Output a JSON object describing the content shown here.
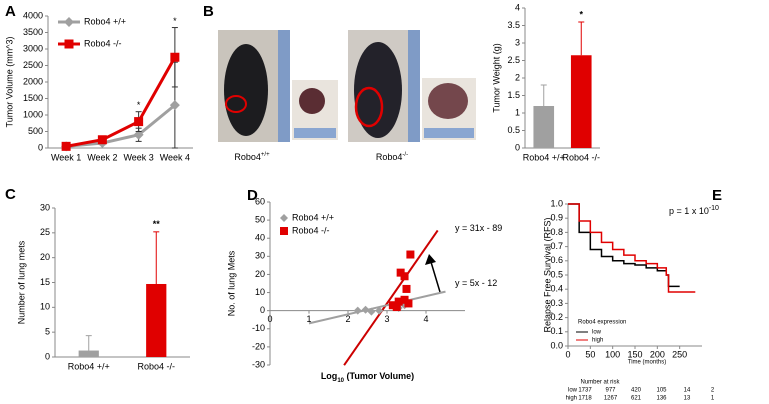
{
  "photos": {
    "panel": "B",
    "labels": [
      {
        "text": "Robo4",
        "sup": "+/+"
      },
      {
        "text": "Robo4",
        "sup": "-/-"
      }
    ]
  },
  "chart_data": [
    {
      "type": "line",
      "panel": "A",
      "y_label": "Tumor Volume (mm^3)",
      "categories": [
        "Week 1",
        "Week 2",
        "Week 3",
        "Week 4"
      ],
      "series": [
        {
          "name": "Robo4 +/+",
          "color": "#a0a0a0",
          "values": [
            50,
            150,
            400,
            1300
          ],
          "errors": [
            20,
            50,
            200,
            1300
          ]
        },
        {
          "name": "Robo4 -/-",
          "color": "#e00000",
          "values": [
            50,
            250,
            800,
            2750
          ],
          "errors": [
            20,
            80,
            300,
            900
          ]
        }
      ],
      "significance": [
        null,
        null,
        "*",
        "*"
      ],
      "ylim": [
        0,
        4000
      ],
      "yticks": [
        0,
        500,
        1000,
        1500,
        2000,
        2500,
        3000,
        3500,
        4000
      ],
      "legend": "upper left"
    },
    {
      "type": "bar",
      "y_label": "Tumor Weight (g)",
      "categories": [
        "Robo4 +/+",
        "Robo4 -/-"
      ],
      "values": [
        1.2,
        2.65
      ],
      "errors": [
        0.6,
        0.95
      ],
      "colors": [
        "#a0a0a0",
        "#e00000"
      ],
      "significance": [
        null,
        "*"
      ],
      "ylim": [
        0,
        4
      ],
      "yticks": [
        0,
        0.5,
        1,
        1.5,
        2,
        2.5,
        3,
        3.5,
        4
      ]
    },
    {
      "type": "bar",
      "panel": "C",
      "y_label": "Number of lung mets",
      "categories": [
        "Robo4 +/+",
        "Robo4 -/-"
      ],
      "values": [
        1.3,
        14.7
      ],
      "errors": [
        3,
        10.5
      ],
      "colors": [
        "#a0a0a0",
        "#e00000"
      ],
      "significance": [
        null,
        "**"
      ],
      "ylim": [
        0,
        30
      ],
      "yticks": [
        0,
        5,
        10,
        15,
        20,
        25,
        30
      ]
    },
    {
      "type": "scatter",
      "panel": "D",
      "y_label": "No. of lung Mets",
      "x_label": {
        "text": "Log",
        "sub": "10",
        "rest": " (Tumor Volume)"
      },
      "series": [
        {
          "name": "Robo4 +/+",
          "color": "#a0a0a0",
          "x": [
            2.25,
            2.45,
            2.6,
            2.8,
            3.3,
            3.45
          ],
          "values": [
            0,
            0.5,
            -0.5,
            0,
            1.5,
            3
          ]
        },
        {
          "name": "Robo4 -/-",
          "color": "#e00000",
          "x": [
            3.15,
            3.25,
            3.3,
            3.35,
            3.45,
            3.45,
            3.5,
            3.55,
            3.6
          ],
          "values": [
            3,
            2,
            5,
            21,
            19,
            6,
            12,
            4,
            31
          ]
        }
      ],
      "trendlines": [
        {
          "label": "y = 31x - 89",
          "slope": 31,
          "intercept": -89,
          "x": [
            1.9,
            4.3
          ],
          "color": "#cc0000"
        },
        {
          "label": "y = 5x - 12",
          "slope": 5,
          "intercept": -12,
          "x": [
            1,
            4.5
          ],
          "color": "#a0a0a0"
        }
      ],
      "xlim": [
        0,
        5
      ],
      "ylim": [
        -30,
        60
      ],
      "xticks": [
        0,
        1,
        2,
        3,
        4
      ],
      "yticks": [
        -30,
        -20,
        -10,
        0,
        10,
        20,
        30,
        40,
        50,
        60
      ],
      "legend": "upper left"
    },
    {
      "type": "step",
      "panel": "E",
      "title": {
        "text": "p = 1 x 10",
        "sup": "-10"
      },
      "y_label": "Relapse Free Survival (RFS)",
      "x_label": "Time (months)",
      "legend_title": "Robo4 expression",
      "series": [
        {
          "name": "low",
          "color": "#000000",
          "x": [
            0,
            25,
            50,
            75,
            100,
            125,
            150,
            175,
            200,
            220,
            225,
            250
          ],
          "values": [
            1,
            0.8,
            0.68,
            0.63,
            0.6,
            0.58,
            0.57,
            0.55,
            0.53,
            0.5,
            0.42,
            0.42
          ]
        },
        {
          "name": "high",
          "color": "#e00000",
          "x": [
            0,
            25,
            50,
            75,
            100,
            125,
            150,
            175,
            200,
            220,
            225,
            285
          ],
          "values": [
            1,
            0.88,
            0.8,
            0.73,
            0.68,
            0.64,
            0.6,
            0.58,
            0.55,
            0.5,
            0.38,
            0.38
          ]
        }
      ],
      "xlim": [
        0,
        300
      ],
      "ylim": [
        0,
        1
      ],
      "xticks": [
        0,
        50,
        100,
        150,
        200,
        250
      ],
      "yticks": [
        {
          "value": 0,
          "label": "0.0"
        },
        0.1,
        0.2,
        0.3,
        0.4,
        0.5,
        0.6,
        0.7,
        0.8,
        0.9,
        {
          "value": 1,
          "label": "1.0"
        }
      ],
      "risk_table": {
        "title": "Number at risk",
        "rows": [
          {
            "name": "low",
            "values": [
              1737,
              977,
              420,
              105,
              14,
              2
            ]
          },
          {
            "name": "high",
            "values": [
              1718,
              1267,
              621,
              136,
              13,
              1
            ]
          }
        ]
      }
    }
  ]
}
